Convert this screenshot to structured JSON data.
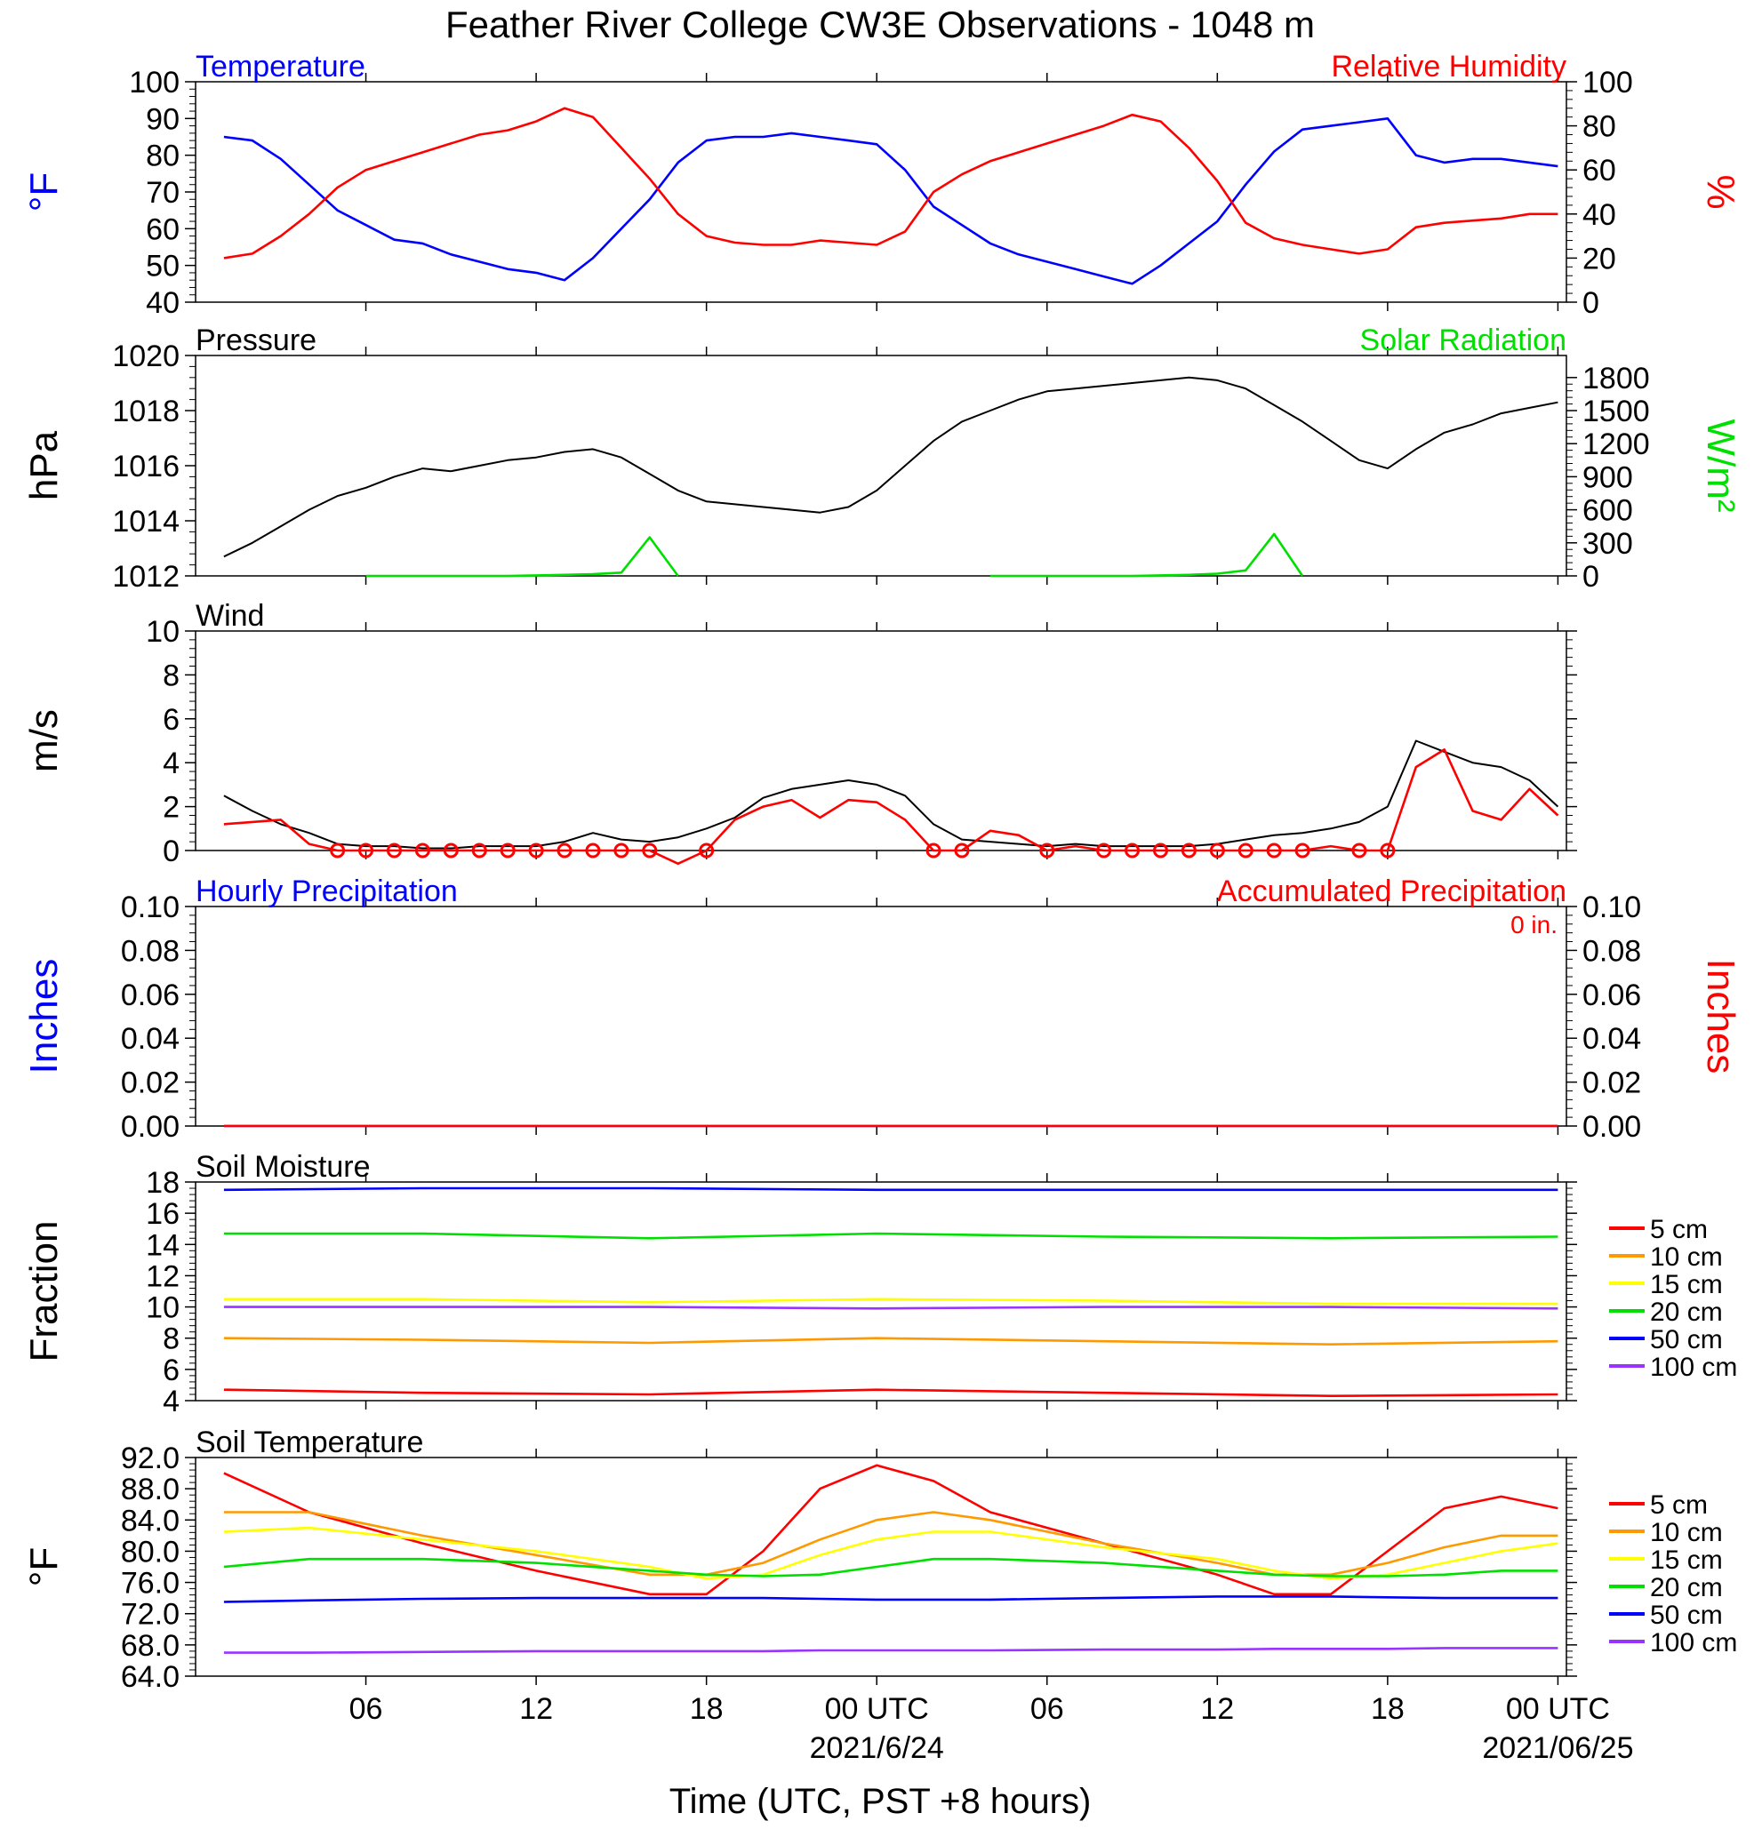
{
  "title": "Feather River College CW3E Observations - 1048 m",
  "xlabel": "Time (UTC, PST +8 hours)",
  "x_ticks": [
    {
      "label": "06",
      "date": ""
    },
    {
      "label": "12",
      "date": ""
    },
    {
      "label": "18",
      "date": ""
    },
    {
      "label": "00 UTC",
      "date": "2021/6/24"
    },
    {
      "label": "06",
      "date": ""
    },
    {
      "label": "12",
      "date": ""
    },
    {
      "label": "18",
      "date": ""
    },
    {
      "label": "00 UTC",
      "date": "2021/06/25"
    }
  ],
  "colors": {
    "red": "#ff0000",
    "blue": "#0000ff",
    "green": "#00e000",
    "orange": "#ff9900",
    "yellow": "#ffff00",
    "purple": "#9933ff",
    "black": "#000000"
  },
  "chart_data": [
    {
      "type": "line",
      "title_left": "Temperature",
      "title_right": "Relative Humidity",
      "ylabel_left": "°F",
      "ylabel_right": "%",
      "ylim_left": [
        40,
        100
      ],
      "ylim_right": [
        0,
        100
      ],
      "yticks_left": [
        "40",
        "50",
        "60",
        "70",
        "80",
        "90",
        "100"
      ],
      "yticks_right": [
        "0",
        "20",
        "40",
        "60",
        "80",
        "100"
      ],
      "x_hours": [
        1,
        2,
        3,
        4,
        5,
        6,
        7,
        8,
        9,
        10,
        11,
        12,
        13,
        14,
        15,
        16,
        17,
        18,
        19,
        20,
        21,
        22,
        23,
        24,
        25,
        26,
        27,
        28,
        29,
        30,
        31,
        32,
        33,
        34,
        35,
        36,
        37,
        38,
        39,
        40,
        41,
        42,
        43,
        44,
        45,
        46,
        47,
        48
      ],
      "series": [
        {
          "name": "Temperature",
          "axis": "left",
          "color": "blue",
          "values": [
            85,
            84,
            79,
            72,
            65,
            61,
            57,
            56,
            53,
            51,
            49,
            48,
            46,
            52,
            60,
            68,
            78,
            84,
            85,
            85,
            86,
            85,
            84,
            83,
            76,
            66,
            61,
            56,
            53,
            51,
            49,
            47,
            45,
            50,
            56,
            62,
            72,
            81,
            87,
            88,
            89,
            90,
            80,
            78,
            79,
            79,
            78,
            77
          ]
        },
        {
          "name": "Relative Humidity",
          "axis": "right",
          "color": "red",
          "values": [
            20,
            22,
            30,
            40,
            52,
            60,
            64,
            68,
            72,
            76,
            78,
            82,
            88,
            84,
            70,
            56,
            40,
            30,
            27,
            26,
            26,
            28,
            27,
            26,
            32,
            50,
            58,
            64,
            68,
            72,
            76,
            80,
            85,
            82,
            70,
            55,
            36,
            29,
            26,
            24,
            22,
            24,
            34,
            36,
            37,
            38,
            40,
            40
          ]
        }
      ]
    },
    {
      "type": "line",
      "title_left": "Pressure",
      "title_right": "Solar Radiation",
      "ylabel_left": "hPa",
      "ylabel_right": "W/m²",
      "ylim_left": [
        1012,
        1020
      ],
      "ylim_right": [
        0,
        2000
      ],
      "yticks_left": [
        "1012",
        "1014",
        "1016",
        "1018",
        "1020"
      ],
      "yticks_right": [
        "0",
        "300",
        "600",
        "900",
        "1200",
        "1500",
        "1800"
      ],
      "x_hours": [
        1,
        2,
        3,
        4,
        5,
        6,
        7,
        8,
        9,
        10,
        11,
        12,
        13,
        14,
        15,
        16,
        17,
        18,
        19,
        20,
        21,
        22,
        23,
        24,
        25,
        26,
        27,
        28,
        29,
        30,
        31,
        32,
        33,
        34,
        35,
        36,
        37,
        38,
        39,
        40,
        41,
        42,
        43,
        44,
        45,
        46,
        47,
        48
      ],
      "series": [
        {
          "name": "Pressure",
          "axis": "left",
          "color": "black",
          "values": [
            1012.7,
            1013.2,
            1013.8,
            1014.4,
            1014.9,
            1015.2,
            1015.6,
            1015.9,
            1015.8,
            1016.0,
            1016.2,
            1016.3,
            1016.5,
            1016.6,
            1016.3,
            1015.7,
            1015.1,
            1014.7,
            1014.6,
            1014.5,
            1014.4,
            1014.3,
            1014.5,
            1015.1,
            1016.0,
            1016.9,
            1017.6,
            1018.0,
            1018.4,
            1018.7,
            1018.8,
            1018.9,
            1019.0,
            1019.1,
            1019.2,
            1019.1,
            1018.8,
            1018.2,
            1017.6,
            1016.9,
            1016.2,
            1015.9,
            1016.6,
            1017.2,
            1017.5,
            1017.9,
            1018.1,
            1018.3
          ]
        },
        {
          "name": "Solar Radiation",
          "axis": "right",
          "color": "green",
          "values": [
            null,
            null,
            null,
            null,
            null,
            0,
            0,
            0,
            0,
            0,
            0,
            5,
            10,
            15,
            30,
            350,
            0,
            null,
            null,
            null,
            null,
            null,
            null,
            null,
            null,
            null,
            null,
            0,
            0,
            0,
            0,
            0,
            0,
            5,
            10,
            20,
            50,
            380,
            0,
            null,
            null,
            null,
            null,
            null,
            null,
            null,
            null,
            null
          ]
        }
      ]
    },
    {
      "type": "line",
      "title_left": "Wind",
      "ylabel_left": "m/s",
      "ylim_left": [
        0,
        10
      ],
      "yticks_left": [
        "0",
        "2",
        "4",
        "6",
        "8",
        "10"
      ],
      "x_hours": [
        1,
        2,
        3,
        4,
        5,
        6,
        7,
        8,
        9,
        10,
        11,
        12,
        13,
        14,
        15,
        16,
        17,
        18,
        19,
        20,
        21,
        22,
        23,
        24,
        25,
        26,
        27,
        28,
        29,
        30,
        31,
        32,
        33,
        34,
        35,
        36,
        37,
        38,
        39,
        40,
        41,
        42,
        43,
        44,
        45,
        46,
        47,
        48
      ],
      "series": [
        {
          "name": "Wind speed",
          "axis": "left",
          "color": "black",
          "values": [
            2.5,
            1.8,
            1.2,
            0.8,
            0.3,
            0.2,
            0.2,
            0.1,
            0.1,
            0.2,
            0.2,
            0.2,
            0.4,
            0.8,
            0.5,
            0.4,
            0.6,
            1.0,
            1.5,
            2.4,
            2.8,
            3.0,
            3.2,
            3.0,
            2.5,
            1.2,
            0.5,
            0.4,
            0.3,
            0.2,
            0.3,
            0.2,
            0.2,
            0.2,
            0.2,
            0.3,
            0.5,
            0.7,
            0.8,
            1.0,
            1.3,
            2.0,
            5.0,
            4.5,
            4.0,
            3.8,
            3.2,
            2.0
          ]
        },
        {
          "name": "Wind barbs",
          "axis": "left",
          "color": "red",
          "values": [
            1.2,
            1.3,
            1.4,
            0.3,
            0,
            0,
            0,
            0,
            0,
            0,
            0,
            0,
            0,
            0,
            0,
            0,
            -0.6,
            0,
            1.4,
            2.0,
            2.3,
            1.5,
            2.3,
            2.2,
            1.4,
            0,
            0,
            0.9,
            0.7,
            0,
            0.2,
            0,
            0,
            0,
            0,
            0,
            0,
            0,
            0,
            0.2,
            0,
            0,
            3.8,
            4.6,
            1.8,
            1.4,
            2.8,
            1.6
          ]
        }
      ]
    },
    {
      "type": "line",
      "title_left": "Hourly Precipitation",
      "title_right": "Accumulated Precipitation",
      "annotation": "0 in.",
      "ylabel_left": "Inches",
      "ylabel_right": "Inches",
      "ylim_left": [
        0,
        0.1
      ],
      "ylim_right": [
        0,
        0.1
      ],
      "yticks_left": [
        "0.00",
        "0.02",
        "0.04",
        "0.06",
        "0.08",
        "0.10"
      ],
      "yticks_right": [
        "0.00",
        "0.02",
        "0.04",
        "0.06",
        "0.08",
        "0.10"
      ],
      "x_hours": [
        1,
        48
      ],
      "series": [
        {
          "name": "Hourly Precipitation",
          "axis": "left",
          "color": "blue",
          "values": [
            0,
            0
          ]
        },
        {
          "name": "Accumulated Precipitation",
          "axis": "right",
          "color": "red",
          "values": [
            0,
            0
          ]
        }
      ]
    },
    {
      "type": "line",
      "title_left": "Soil Moisture",
      "ylabel_left": "Fraction",
      "ylim_left": [
        4,
        18
      ],
      "yticks_left": [
        "4",
        "6",
        "8",
        "10",
        "12",
        "14",
        "16",
        "18"
      ],
      "x_hours": [
        1,
        8,
        16,
        24,
        32,
        40,
        48
      ],
      "legend": [
        "5 cm",
        "10 cm",
        "15 cm",
        "20 cm",
        "50 cm",
        "100 cm"
      ],
      "series": [
        {
          "name": "5 cm",
          "axis": "left",
          "color": "red",
          "values": [
            4.7,
            4.5,
            4.4,
            4.7,
            4.5,
            4.3,
            4.4
          ]
        },
        {
          "name": "10 cm",
          "axis": "left",
          "color": "orange",
          "values": [
            8.0,
            7.9,
            7.7,
            8.0,
            7.8,
            7.6,
            7.8
          ]
        },
        {
          "name": "15 cm",
          "axis": "left",
          "color": "yellow",
          "values": [
            10.5,
            10.5,
            10.3,
            10.5,
            10.4,
            10.2,
            10.2
          ]
        },
        {
          "name": "20 cm",
          "axis": "left",
          "color": "green",
          "values": [
            14.7,
            14.7,
            14.4,
            14.7,
            14.5,
            14.4,
            14.5
          ]
        },
        {
          "name": "50 cm",
          "axis": "left",
          "color": "blue",
          "values": [
            17.5,
            17.6,
            17.6,
            17.5,
            17.5,
            17.5,
            17.5
          ]
        },
        {
          "name": "100 cm",
          "axis": "left",
          "color": "purple",
          "values": [
            10.0,
            10.0,
            10.0,
            9.9,
            10.0,
            10.0,
            9.9
          ]
        }
      ]
    },
    {
      "type": "line",
      "title_left": "Soil Temperature",
      "ylabel_left": "°F",
      "ylim_left": [
        64,
        92
      ],
      "yticks_left": [
        "64.0",
        "68.0",
        "72.0",
        "76.0",
        "80.0",
        "84.0",
        "88.0",
        "92.0"
      ],
      "x_hours": [
        1,
        4,
        8,
        12,
        16,
        18,
        20,
        22,
        24,
        26,
        28,
        32,
        36,
        38,
        40,
        42,
        44,
        46,
        48
      ],
      "legend": [
        "5 cm",
        "10 cm",
        "15 cm",
        "20 cm",
        "50 cm",
        "100 cm"
      ],
      "series": [
        {
          "name": "5 cm",
          "axis": "left",
          "color": "red",
          "values": [
            90.0,
            85.0,
            81.0,
            77.5,
            74.5,
            74.5,
            80.0,
            88.0,
            91.0,
            89.0,
            85.0,
            81.0,
            77.0,
            74.5,
            74.5,
            80.0,
            85.5,
            87.0,
            85.5
          ]
        },
        {
          "name": "10 cm",
          "axis": "left",
          "color": "orange",
          "values": [
            85.0,
            85.0,
            82.0,
            79.5,
            77.0,
            77.0,
            78.5,
            81.5,
            84.0,
            85.0,
            84.0,
            81.0,
            78.5,
            77.0,
            77.0,
            78.5,
            80.5,
            82.0,
            82.0
          ]
        },
        {
          "name": "15 cm",
          "axis": "left",
          "color": "yellow",
          "values": [
            82.5,
            83.0,
            81.5,
            80.0,
            78.0,
            76.5,
            77.0,
            79.5,
            81.5,
            82.5,
            82.5,
            80.5,
            79.0,
            77.5,
            76.5,
            77.0,
            78.5,
            80.0,
            81.0
          ]
        },
        {
          "name": "20 cm",
          "axis": "left",
          "color": "green",
          "values": [
            78.0,
            79.0,
            79.0,
            78.5,
            77.5,
            77.0,
            76.8,
            77.0,
            78.0,
            79.0,
            79.0,
            78.5,
            77.5,
            77.0,
            76.8,
            76.8,
            77.0,
            77.5,
            77.5
          ]
        },
        {
          "name": "50 cm",
          "axis": "left",
          "color": "blue",
          "values": [
            73.5,
            73.7,
            73.9,
            74.0,
            74.0,
            74.0,
            74.0,
            73.9,
            73.8,
            73.8,
            73.8,
            74.0,
            74.2,
            74.2,
            74.2,
            74.1,
            74.0,
            74.0,
            74.0
          ]
        },
        {
          "name": "100 cm",
          "axis": "left",
          "color": "purple",
          "values": [
            67.0,
            67.0,
            67.1,
            67.2,
            67.2,
            67.2,
            67.2,
            67.3,
            67.3,
            67.3,
            67.3,
            67.4,
            67.4,
            67.5,
            67.5,
            67.5,
            67.6,
            67.6,
            67.6
          ]
        }
      ]
    }
  ]
}
